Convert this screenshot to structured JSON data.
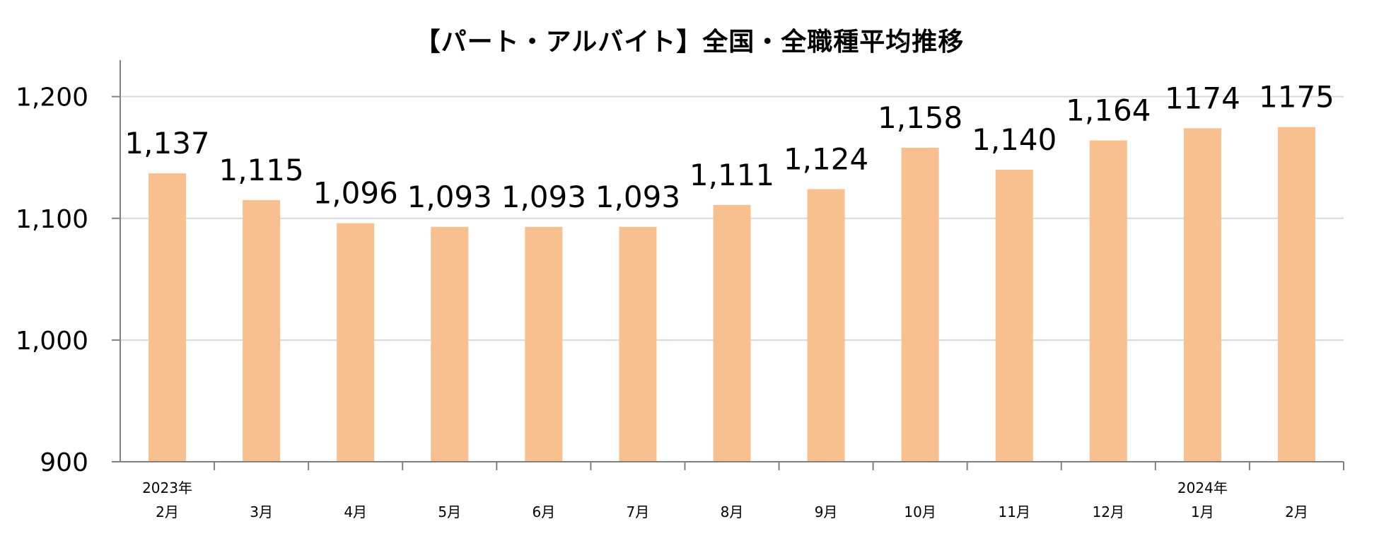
{
  "chart_data": {
    "type": "bar",
    "title": "【パート・アルバイト】全国・全職種平均推移",
    "categories": [
      "2月",
      "3月",
      "4月",
      "5月",
      "6月",
      "7月",
      "8月",
      "9月",
      "10月",
      "11月",
      "12月",
      "1月",
      "2月"
    ],
    "year_labels": [
      "2023年",
      "",
      "",
      "",
      "",
      "",
      "",
      "",
      "",
      "",
      "",
      "2024年",
      ""
    ],
    "values": [
      1137,
      1115,
      1096,
      1093,
      1093,
      1093,
      1111,
      1124,
      1158,
      1140,
      1164,
      1174,
      1175
    ],
    "data_labels": [
      "1,137",
      "1,115",
      "1,096",
      "1,093",
      "1,093",
      "1,093",
      "1,111",
      "1,124",
      "1,158",
      "1,140",
      "1,164",
      "1174",
      "1175"
    ],
    "yticks": [
      900,
      1000,
      1100,
      1200
    ],
    "ytick_labels": [
      "900",
      "1,000",
      "1,100",
      "1,200"
    ],
    "ylim": [
      900,
      1230
    ],
    "grid": true,
    "bar_color": "#f9c08f",
    "grid_color": "#d9d9d9",
    "axis_color": "#808080"
  }
}
